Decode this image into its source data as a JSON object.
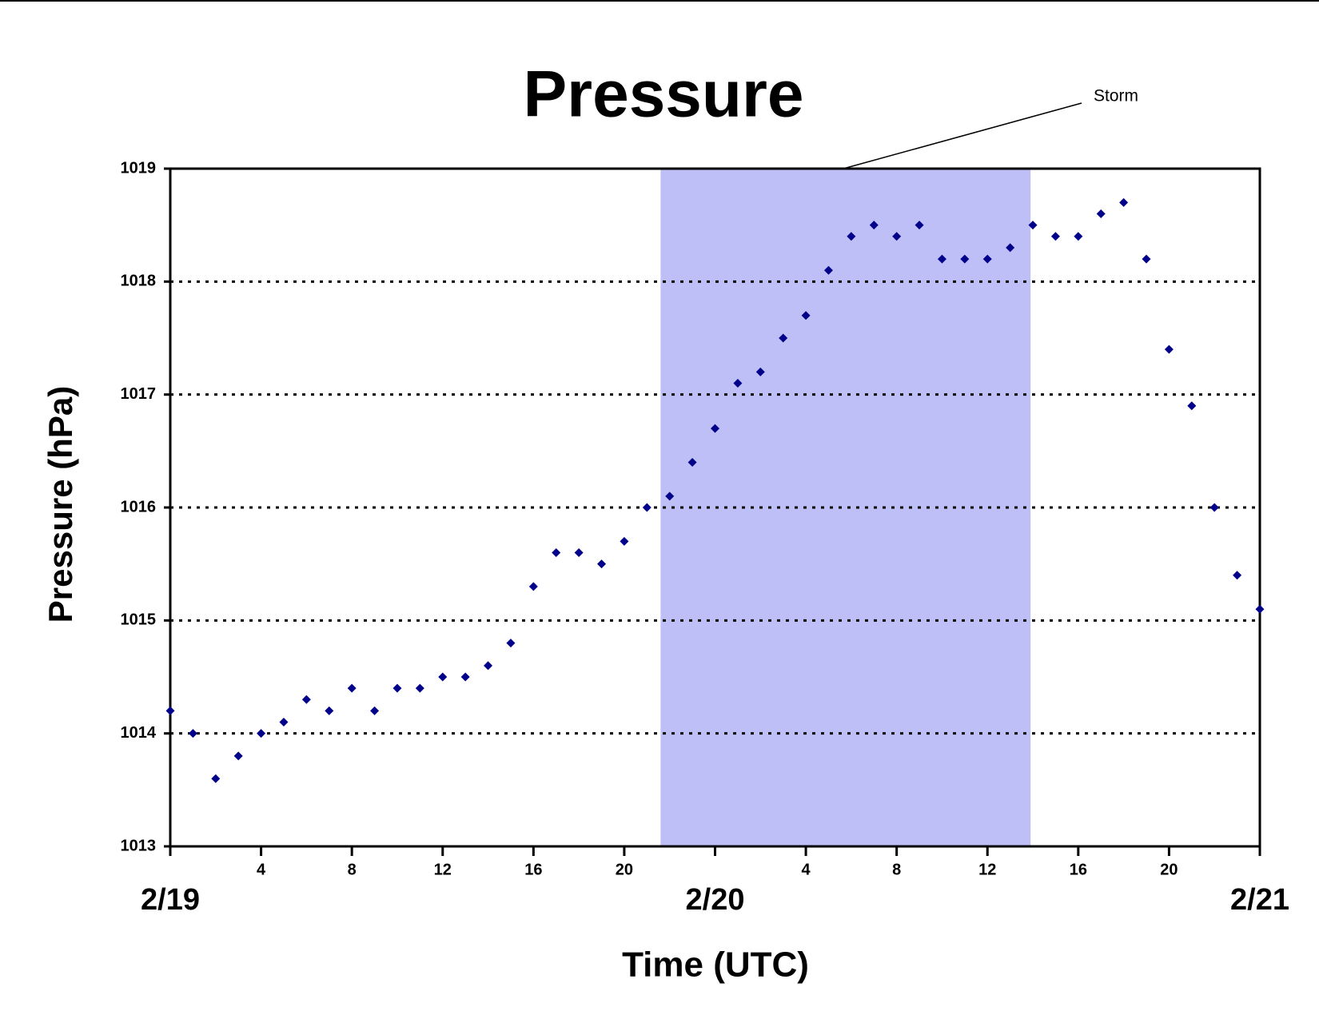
{
  "chart_data": {
    "type": "scatter",
    "title": "Pressure",
    "x_label": "Time (UTC)",
    "y_label": "Pressure (hPa)",
    "annotation": {
      "text": "Storm",
      "span": [
        21.6,
        37.9
      ],
      "color": "#bfbff8"
    },
    "series": [
      {
        "name": "Pressure",
        "color": "#00008b",
        "x": [
          0,
          1,
          2,
          3,
          4,
          5,
          6,
          7,
          8,
          9,
          10,
          11,
          12,
          13,
          14,
          15,
          16,
          17,
          18,
          19,
          20,
          21,
          22,
          23,
          24,
          25,
          26,
          27,
          28,
          29,
          30,
          31,
          32,
          33,
          34,
          35,
          36,
          37,
          38,
          39,
          40,
          41,
          42,
          43,
          44,
          45,
          46,
          47,
          48
        ],
        "values": [
          1014.2,
          1014.0,
          1013.6,
          1013.8,
          1014.0,
          1014.1,
          1014.3,
          1014.2,
          1014.4,
          1014.2,
          1014.4,
          1014.4,
          1014.5,
          1014.5,
          1014.6,
          1014.8,
          1015.3,
          1015.6,
          1015.6,
          1015.5,
          1015.7,
          1016.0,
          1016.1,
          1016.4,
          1016.7,
          1017.1,
          1017.2,
          1017.5,
          1017.7,
          1018.1,
          1018.4,
          1018.5,
          1018.4,
          1018.5,
          1018.2,
          1018.2,
          1018.2,
          1018.3,
          1018.5,
          1018.4,
          1018.4,
          1018.6,
          1018.7,
          1018.2,
          1017.4,
          1016.9,
          1016.0,
          1015.4,
          1015.1
        ]
      }
    ],
    "xlim": [
      0,
      48
    ],
    "xticks": [
      {
        "value": 0,
        "label": "2/19"
      },
      4,
      8,
      12,
      16,
      20,
      {
        "value": 24,
        "label": "2/20"
      },
      {
        "value": 28,
        "label": "4"
      },
      {
        "value": 32,
        "label": "8"
      },
      {
        "value": 36,
        "label": "12"
      },
      {
        "value": 40,
        "label": "16"
      },
      {
        "value": 44,
        "label": "20"
      },
      {
        "value": 48,
        "label": "2/21"
      }
    ],
    "ylim": [
      1013,
      1019
    ],
    "yticks": [
      1013,
      1014,
      1015,
      1016,
      1017,
      1018,
      1019
    ],
    "grid": true
  }
}
